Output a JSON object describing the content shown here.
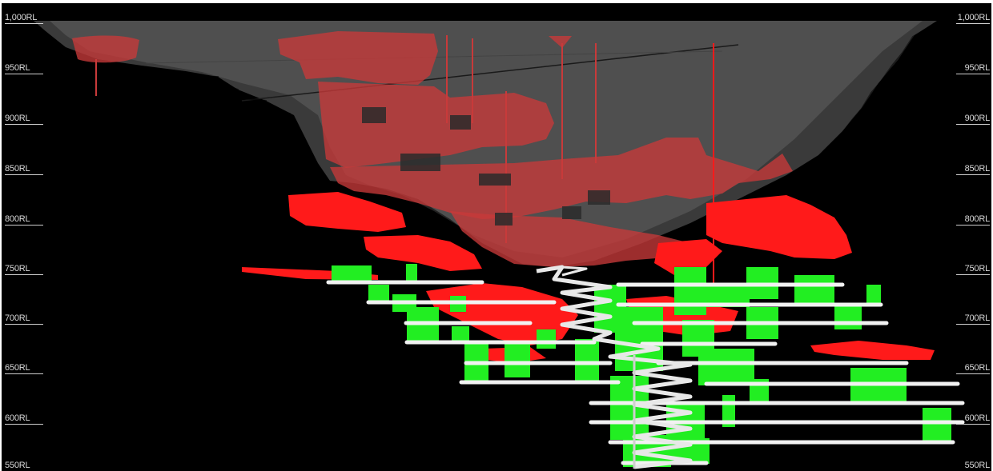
{
  "levels": {
    "left": [
      "1,000RL",
      "950RL",
      "900RL",
      "850RL",
      "800RL",
      "750RL",
      "700RL",
      "650RL",
      "600RL",
      "550RL"
    ],
    "right": [
      "1,000RL",
      "950RL",
      "900RL",
      "850RL",
      "800RL",
      "750RL",
      "700RL",
      "650RL",
      "600RL",
      "550RL"
    ]
  },
  "colors": {
    "background": "#000000",
    "pit_shell": "#7d7d7d",
    "mined_stopes": "#c83a3a",
    "unmined_stopes_red": "#ff1a1a",
    "planned_stopes": "#22ee22",
    "decline": "#ffffff"
  }
}
